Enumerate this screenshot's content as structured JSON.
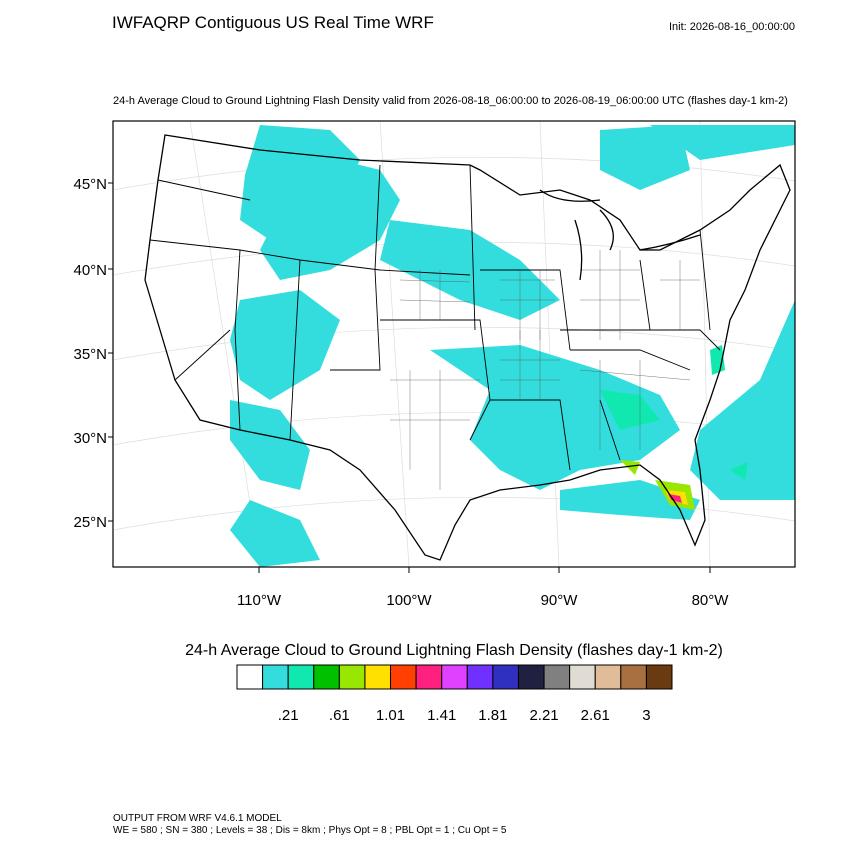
{
  "header": {
    "title": "IWFAQRP Contiguous US Real Time WRF",
    "init": "Init: 2026-08-16_00:00:00"
  },
  "map": {
    "subtitle": "24-h Average Cloud to Ground Lightning Flash Density valid from 2026-08-18_06:00:00 to 2026-08-19_06:00:00 UTC   (flashes day-1 km-2)",
    "lat_labels": [
      "45°N",
      "40°N",
      "35°N",
      "30°N",
      "25°N"
    ],
    "lon_labels": [
      "110°W",
      "100°W",
      "90°W",
      "80°W"
    ]
  },
  "colorbar": {
    "title": "24-h Average Cloud to Ground Lightning Flash Density  (flashes day-1 km-2)",
    "colors": [
      "#ffffff",
      "#33dddd",
      "#11e8b0",
      "#00c000",
      "#99e600",
      "#ffe000",
      "#ff4000",
      "#ff2080",
      "#e040ff",
      "#7030ff",
      "#3030c0",
      "#202040",
      "#808080",
      "#e0dcd4",
      "#e0bc98",
      "#a87040",
      "#6a3a10"
    ],
    "labels": [
      ".21",
      ".61",
      "1.01",
      "1.41",
      "1.81",
      "2.21",
      "2.61",
      "3"
    ]
  },
  "footer": {
    "lines": [
      "OUTPUT FROM WRF V4.6.1 MODEL",
      "WE = 580 ; SN = 380 ; Levels = 38 ; Dis = 8km ; Phys Opt = 8 ; PBL Opt = 1 ; Cu Opt = 5"
    ]
  }
}
